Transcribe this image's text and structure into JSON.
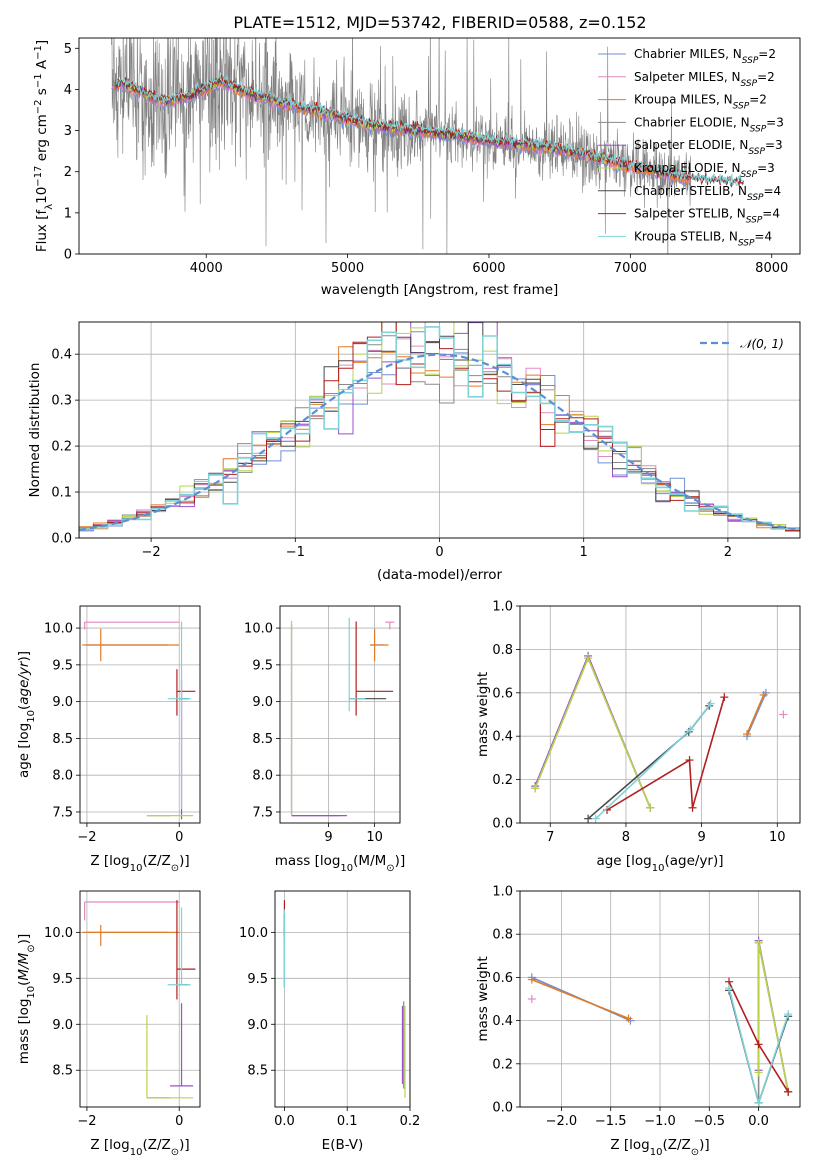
{
  "title": "PLATE=1512, MJD=53742, FIBERID=0588, z=0.152",
  "colors": {
    "Chabrier MILES": "#6f8fd6",
    "Salpeter MILES": "#e38ac4",
    "Kroupa MILES": "#e07b28",
    "Chabrier ELODIE": "#8a8a8a",
    "Salpeter ELODIE": "#9b4fd1",
    "Kroupa ELODIE": "#b9d44a",
    "Chabrier STELIB": "#4a4a4a",
    "Salpeter STELIB": "#b01f1f",
    "Kroupa STELIB": "#7fd3d8",
    "observed": "#808080",
    "normal": "#5b8fd6"
  },
  "chart_data": [
    {
      "id": "spectrum",
      "type": "line",
      "xlabel": "wavelength [Angstrom, rest frame]",
      "ylabel": "Flux [f_λ 10^-17 erg cm^-2 s^-1 A^-1]",
      "ylabel_parts": {
        "a": "Flux [f",
        "b": "λ",
        "c": "10",
        "d": "−17",
        "e": " erg cm",
        "f": "−2",
        "g": " s",
        "h": "−1",
        "i": " A",
        "j": "−1",
        "k": "]"
      },
      "xlim": [
        3100,
        8200
      ],
      "ylim": [
        0,
        5.25
      ],
      "xticks": [
        4000,
        5000,
        6000,
        7000,
        8000
      ],
      "yticks": [
        0,
        1,
        2,
        3,
        4,
        5
      ],
      "grid": false,
      "legend_position": "right",
      "legend": [
        {
          "prefix": "Chabrier MILES, N",
          "sub": "SSP",
          "suffix": "=2"
        },
        {
          "prefix": "Salpeter MILES, N",
          "sub": "SSP",
          "suffix": "=2"
        },
        {
          "prefix": "Kroupa MILES, N",
          "sub": "SSP",
          "suffix": "=2"
        },
        {
          "prefix": "Chabrier ELODIE, N",
          "sub": "SSP",
          "suffix": "=3"
        },
        {
          "prefix": "Salpeter ELODIE, N",
          "sub": "SSP",
          "suffix": "=3"
        },
        {
          "prefix": "Kroupa ELODIE, N",
          "sub": "SSP",
          "suffix": "=3"
        },
        {
          "prefix": "Chabrier STELIB, N",
          "sub": "SSP",
          "suffix": "=4"
        },
        {
          "prefix": "Salpeter STELIB, N",
          "sub": "SSP",
          "suffix": "=4"
        },
        {
          "prefix": "Kroupa STELIB, N",
          "sub": "SSP",
          "suffix": "=4"
        }
      ],
      "observed_range": [
        3330,
        7430
      ],
      "continuum": {
        "x": [
          3330,
          3400,
          3550,
          3700,
          3900,
          4100,
          4300,
          4500,
          4800,
          5200,
          5600,
          6000,
          6500,
          6800,
          7100,
          7430,
          7800
        ],
        "y": [
          4.1,
          4.15,
          3.9,
          3.7,
          3.85,
          4.2,
          3.9,
          3.7,
          3.45,
          3.1,
          2.95,
          2.75,
          2.55,
          2.3,
          2.05,
          1.8,
          1.7
        ]
      }
    },
    {
      "id": "residuals",
      "type": "histogram",
      "xlabel": "(data-model)/error",
      "ylabel": "Normed distribution",
      "xlim": [
        -2.5,
        2.5
      ],
      "ylim": [
        0,
        0.47
      ],
      "xticks": [
        -2,
        -1,
        0,
        1,
        2
      ],
      "xtick_labels": [
        "−2",
        "−1",
        "0",
        "1",
        "2"
      ],
      "yticks": [
        0.0,
        0.1,
        0.2,
        0.3,
        0.4
      ],
      "ytick_labels": [
        "0.0",
        "0.1",
        "0.2",
        "0.3",
        "0.4"
      ],
      "grid": true,
      "legend": {
        "label": "𝒩(0, 1)",
        "position": "top-right"
      },
      "bin_width": 0.1
    },
    {
      "id": "z-age",
      "type": "scatter",
      "xlabel_pre": "Z [log",
      "xlabel_sub": "10",
      "xlabel_post": "(Z/Z",
      "xlabel_sub2": "⊙",
      "xlabel_end": ")]",
      "ylabel": "age  [log10(age/yr)]",
      "xlim": [
        -2.15,
        0.45
      ],
      "ylim": [
        7.35,
        10.3
      ],
      "xticks": [
        -2,
        0
      ],
      "xtick_labels": [
        "−2",
        "0"
      ],
      "yticks": [
        7.5,
        8.0,
        8.5,
        9.0,
        9.5,
        10.0
      ],
      "ytick_labels": [
        "7.5",
        "8.0",
        "8.5",
        "9.0",
        "9.5",
        "10.0"
      ],
      "grid": true,
      "points": [
        {
          "s": "Chabrier MILES",
          "x": -1.95,
          "y": 9.77,
          "ex": [
            0.05,
            1.7
          ],
          "ey": [
            0,
            0
          ]
        },
        {
          "s": "Salpeter MILES",
          "x": -2.05,
          "y": 10.08,
          "ex": [
            0,
            2.05
          ],
          "ey": [
            0.1,
            0
          ]
        },
        {
          "s": "Kroupa MILES",
          "x": -1.7,
          "y": 9.77,
          "ex": [
            0.4,
            1.7
          ],
          "ey": [
            0.22,
            0.22
          ]
        },
        {
          "s": "Chabrier ELODIE",
          "x": -0.7,
          "y": 7.45,
          "ex": [
            0.0,
            0.5
          ],
          "ey": [
            0,
            0
          ]
        },
        {
          "s": "Salpeter ELODIE",
          "x": 0.05,
          "y": 8.4,
          "ex": [
            0,
            0
          ],
          "ey": [
            1.0,
            0.9
          ]
        },
        {
          "s": "Kroupa ELODIE",
          "x": -0.7,
          "y": 7.45,
          "ex": [
            0,
            1.0
          ],
          "ey": [
            0,
            0
          ]
        },
        {
          "s": "Chabrier STELIB",
          "x": 0.0,
          "y": 9.04,
          "ex": [
            0,
            0.2
          ],
          "ey": [
            0,
            0
          ]
        },
        {
          "s": "Salpeter STELIB",
          "x": -0.05,
          "y": 9.14,
          "ex": [
            0,
            0.4
          ],
          "ey": [
            0.33,
            0.3
          ]
        },
        {
          "s": "Kroupa STELIB",
          "x": 0.05,
          "y": 9.04,
          "ex": [
            0.3,
            0.2
          ],
          "ey": [
            1.5,
            1.05
          ]
        }
      ]
    },
    {
      "id": "mass-age",
      "type": "scatter",
      "xlabel_pre": "mass [log",
      "xlabel_sub": "10",
      "xlabel_post": "(M/M",
      "xlabel_sub2": "⊙",
      "xlabel_end": ")]",
      "xlim": [
        7.95,
        10.55
      ],
      "ylim": [
        7.35,
        10.3
      ],
      "xticks": [
        9,
        10
      ],
      "xtick_labels": [
        "9",
        "10"
      ],
      "yticks": [
        7.5,
        8.0,
        8.5,
        9.0,
        9.5,
        10.0
      ],
      "ytick_labels": [
        "7.5",
        "8.0",
        "8.5",
        "9.0",
        "9.5",
        "10.0"
      ],
      "grid": true,
      "points": [
        {
          "s": "Chabrier MILES",
          "x": 10.0,
          "y": 9.77,
          "ex": [
            0.1,
            0.2
          ],
          "ey": [
            0,
            0
          ]
        },
        {
          "s": "Salpeter MILES",
          "x": 10.33,
          "y": 10.08,
          "ex": [
            0.1,
            0.1
          ],
          "ey": [
            0.1,
            0
          ]
        },
        {
          "s": "Kroupa MILES",
          "x": 10.0,
          "y": 9.77,
          "ex": [
            0.1,
            0.3
          ],
          "ey": [
            0.22,
            0.22
          ]
        },
        {
          "s": "Chabrier ELODIE",
          "x": 8.5,
          "y": 7.45,
          "ex": [
            0.3,
            0.75
          ],
          "ey": [
            0,
            0
          ]
        },
        {
          "s": "Salpeter ELODIE",
          "x": 8.2,
          "y": 7.45,
          "ex": [
            0.0,
            1.2
          ],
          "ey": [
            0,
            2.6
          ]
        },
        {
          "s": "Kroupa ELODIE",
          "x": 8.2,
          "y": 7.45,
          "ex": [
            0,
            0
          ],
          "ey": [
            0,
            2.65
          ]
        },
        {
          "s": "Chabrier STELIB",
          "x": 9.45,
          "y": 9.04,
          "ex": [
            0,
            0.8
          ],
          "ey": [
            0,
            0
          ]
        },
        {
          "s": "Salpeter STELIB",
          "x": 9.6,
          "y": 9.14,
          "ex": [
            0,
            0.8
          ],
          "ey": [
            0.33,
            0.95
          ]
        },
        {
          "s": "Kroupa STELIB",
          "x": 9.45,
          "y": 9.04,
          "ex": [
            0,
            0.35
          ],
          "ey": [
            0.17,
            1.1
          ]
        }
      ]
    },
    {
      "id": "age-weight",
      "type": "line",
      "xlabel_pre": "age  [log",
      "xlabel_sub": "10",
      "xlabel_post": "(age/yr)]",
      "ylabel": "mass weight",
      "xlim": [
        6.6,
        10.3
      ],
      "ylim": [
        0,
        1.0
      ],
      "xticks": [
        7,
        8,
        9,
        10
      ],
      "xtick_labels": [
        "7",
        "8",
        "9",
        "10"
      ],
      "yticks": [
        0.0,
        0.2,
        0.4,
        0.6,
        0.8,
        1.0
      ],
      "ytick_labels": [
        "0.0",
        "0.2",
        "0.4",
        "0.6",
        "0.8",
        "1.0"
      ],
      "grid": true,
      "series": [
        {
          "s": "Chabrier MILES",
          "x": [
            9.6,
            9.85
          ],
          "y": [
            0.4,
            0.6
          ]
        },
        {
          "s": "Salpeter MILES",
          "x": [
            10.08
          ],
          "y": [
            0.5
          ]
        },
        {
          "s": "Kroupa MILES",
          "x": [
            9.6,
            9.82
          ],
          "y": [
            0.41,
            0.59
          ]
        },
        {
          "s": "Chabrier ELODIE",
          "x": [
            6.8,
            7.5,
            8.32
          ],
          "y": [
            0.16,
            0.76,
            0.07
          ]
        },
        {
          "s": "Salpeter ELODIE",
          "x": [
            6.8,
            7.5,
            8.32
          ],
          "y": [
            0.17,
            0.77,
            0.07
          ]
        },
        {
          "s": "Kroupa ELODIE",
          "x": [
            6.8,
            7.5,
            8.32
          ],
          "y": [
            0.16,
            0.76,
            0.07
          ]
        },
        {
          "s": "Chabrier STELIB",
          "x": [
            7.5,
            8.83,
            9.1
          ],
          "y": [
            0.02,
            0.42,
            0.54
          ]
        },
        {
          "s": "Salpeter STELIB",
          "x": [
            7.75,
            8.84,
            8.88,
            9.3
          ],
          "y": [
            0.06,
            0.29,
            0.07,
            0.58
          ]
        },
        {
          "s": "Kroupa STELIB",
          "x": [
            7.6,
            8.85,
            9.12
          ],
          "y": [
            0.02,
            0.43,
            0.55
          ]
        }
      ]
    },
    {
      "id": "z-mass",
      "type": "scatter",
      "xlabel_pre": "Z [log",
      "xlabel_sub": "10",
      "xlabel_post": "(Z/Z",
      "xlabel_sub2": "⊙",
      "xlabel_end": ")]",
      "ylabel": "mass [log10(M/M⊙)]",
      "xlim": [
        -2.15,
        0.45
      ],
      "ylim": [
        8.1,
        10.45
      ],
      "xticks": [
        -2,
        0
      ],
      "xtick_labels": [
        "−2",
        "0"
      ],
      "yticks": [
        8.5,
        9.0,
        9.5,
        10.0
      ],
      "ytick_labels": [
        "8.5",
        "9.0",
        "9.5",
        "10.0"
      ],
      "grid": true,
      "points": [
        {
          "s": "Chabrier MILES",
          "x": -1.95,
          "y": 10.0,
          "ex": [
            0.05,
            1.7
          ],
          "ey": [
            0,
            0
          ]
        },
        {
          "s": "Salpeter MILES",
          "x": -2.05,
          "y": 10.33,
          "ex": [
            0,
            2.05
          ],
          "ey": [
            0.2,
            0
          ]
        },
        {
          "s": "Kroupa MILES",
          "x": -1.7,
          "y": 10.0,
          "ex": [
            0.4,
            1.7
          ],
          "ey": [
            0.15,
            0.08
          ]
        },
        {
          "s": "Chabrier ELODIE",
          "x": -0.7,
          "y": 8.2,
          "ex": [
            0.0,
            0.5
          ],
          "ey": [
            0,
            0
          ]
        },
        {
          "s": "Salpeter ELODIE",
          "x": 0.05,
          "y": 8.33,
          "ex": [
            0.25,
            0.25
          ],
          "ey": [
            0,
            0.9
          ]
        },
        {
          "s": "Kroupa ELODIE",
          "x": -0.7,
          "y": 8.2,
          "ex": [
            0,
            1.0
          ],
          "ey": [
            0,
            0.9
          ]
        },
        {
          "s": "Chabrier STELIB",
          "x": 0.0,
          "y": 9.43,
          "ex": [
            0,
            0.2
          ],
          "ey": [
            0,
            0
          ]
        },
        {
          "s": "Salpeter STELIB",
          "x": -0.05,
          "y": 9.6,
          "ex": [
            0,
            0.4
          ],
          "ey": [
            0.33,
            0.75
          ]
        },
        {
          "s": "Kroupa STELIB",
          "x": 0.05,
          "y": 9.43,
          "ex": [
            0.3,
            0.2
          ],
          "ey": [
            0,
            0.84
          ]
        }
      ]
    },
    {
      "id": "ebv-mass",
      "type": "scatter",
      "xlabel": "E(B-V)",
      "xlim": [
        -0.015,
        0.2
      ],
      "ylim": [
        8.1,
        10.45
      ],
      "xticks": [
        0.0,
        0.1,
        0.2
      ],
      "xtick_labels": [
        "0.0",
        "0.1",
        "0.2"
      ],
      "yticks": [
        8.5,
        9.0,
        9.5,
        10.0
      ],
      "ytick_labels": [
        "8.5",
        "9.0",
        "9.5",
        "10.0"
      ],
      "grid": true,
      "points": [
        {
          "s": "Salpeter STELIB",
          "x": 0.0,
          "y": 10.15,
          "ex": [
            0,
            0
          ],
          "ey": [
            0.2,
            0.2
          ]
        },
        {
          "s": "Chabrier STELIB",
          "x": 0.0,
          "y": 9.8,
          "ex": [
            0,
            0
          ],
          "ey": [
            0.4,
            0.4
          ]
        },
        {
          "s": "Kroupa STELIB",
          "x": 0.0,
          "y": 9.8,
          "ex": [
            0,
            0
          ],
          "ey": [
            0.4,
            0.45
          ]
        },
        {
          "s": "Salpeter ELODIE",
          "x": 0.188,
          "y": 8.8,
          "ex": [
            0,
            0
          ],
          "ey": [
            0.45,
            0.4
          ]
        },
        {
          "s": "Chabrier ELODIE",
          "x": 0.19,
          "y": 8.8,
          "ex": [
            0,
            0
          ],
          "ey": [
            0.5,
            0.45
          ]
        },
        {
          "s": "Kroupa ELODIE",
          "x": 0.192,
          "y": 8.7,
          "ex": [
            0,
            0
          ],
          "ey": [
            0.5,
            0.5
          ]
        }
      ]
    },
    {
      "id": "z-weight",
      "type": "line",
      "xlabel_pre": "Z [log",
      "xlabel_sub": "10",
      "xlabel_post": "(Z/Z",
      "xlabel_sub2": "⊙",
      "xlabel_end": ")]",
      "ylabel": "mass weight",
      "xlim": [
        -2.42,
        0.42
      ],
      "ylim": [
        0,
        1.0
      ],
      "xticks": [
        -2.0,
        -1.5,
        -1.0,
        -0.5,
        0.0
      ],
      "xtick_labels": [
        "−2.0",
        "−1.5",
        "−1.0",
        "−0.5",
        "0.0"
      ],
      "yticks": [
        0.0,
        0.2,
        0.4,
        0.6,
        0.8,
        1.0
      ],
      "ytick_labels": [
        "0.0",
        "0.2",
        "0.4",
        "0.6",
        "0.8",
        "1.0"
      ],
      "grid": true,
      "series": [
        {
          "s": "Chabrier MILES",
          "x": [
            -2.3,
            -1.3
          ],
          "y": [
            0.6,
            0.4
          ]
        },
        {
          "s": "Salpeter MILES",
          "x": [
            -2.3
          ],
          "y": [
            0.5
          ]
        },
        {
          "s": "Kroupa MILES",
          "x": [
            -2.3,
            -1.32
          ],
          "y": [
            0.59,
            0.41
          ]
        },
        {
          "s": "Chabrier ELODIE",
          "x": [
            0.0,
            0.0,
            0.3
          ],
          "y": [
            0.02,
            0.76,
            0.07
          ]
        },
        {
          "s": "Salpeter ELODIE",
          "x": [
            0.0,
            0.0,
            0.3
          ],
          "y": [
            0.17,
            0.77,
            0.07
          ]
        },
        {
          "s": "Kroupa ELODIE",
          "x": [
            0.0,
            0.0,
            0.3
          ],
          "y": [
            0.16,
            0.76,
            0.07
          ]
        },
        {
          "s": "Chabrier STELIB",
          "x": [
            -0.3,
            0.0,
            0.3
          ],
          "y": [
            0.54,
            0.02,
            0.42
          ]
        },
        {
          "s": "Salpeter STELIB",
          "x": [
            -0.3,
            0.0,
            0.3
          ],
          "y": [
            0.58,
            0.29,
            0.07
          ]
        },
        {
          "s": "Kroupa STELIB",
          "x": [
            -0.3,
            0.0,
            0.3
          ],
          "y": [
            0.55,
            0.02,
            0.43
          ]
        }
      ]
    }
  ]
}
